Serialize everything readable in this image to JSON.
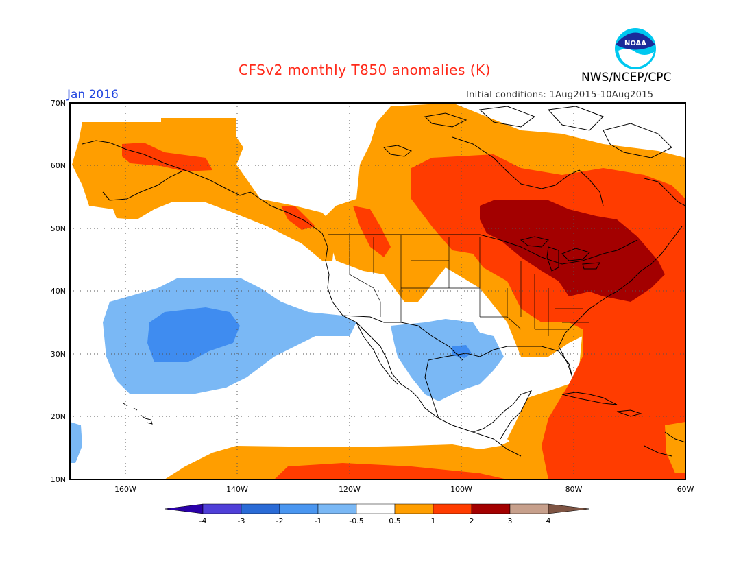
{
  "header": {
    "title": "CFSv2 monthly T850 anomalies (K)",
    "valid_month": "Jan 2016",
    "initial_conditions": "Initial conditions: 1Aug2015-10Aug2015",
    "agency": "NWS/NCEP/CPC",
    "logo_text": "NOAA"
  },
  "map": {
    "lat_labels": [
      "70N",
      "60N",
      "50N",
      "40N",
      "30N",
      "20N",
      "10N"
    ],
    "lon_labels": [
      "160W",
      "140W",
      "120W",
      "100W",
      "80W",
      "60W"
    ],
    "colors": {
      "m3": "#2e6bd0",
      "m2": "#3f8cf0",
      "m1": "#7ab8f5",
      "p05": "#ff9e00",
      "p1": "#ff3c00",
      "p2": "#a30000",
      "frame": "#000000"
    }
  },
  "colorbar": {
    "tick_labels": [
      "-4",
      "-3",
      "-2",
      "-1",
      "-0.5",
      "0.5",
      "1",
      "2",
      "3",
      "4"
    ],
    "colors": [
      "#2a00a8",
      "#4f3fd8",
      "#2a6bd6",
      "#4a96f0",
      "#7ab8f5",
      "#ffffff",
      "#ff9e00",
      "#ff3c00",
      "#a30000",
      "#c7a08c",
      "#7e5443"
    ]
  }
}
